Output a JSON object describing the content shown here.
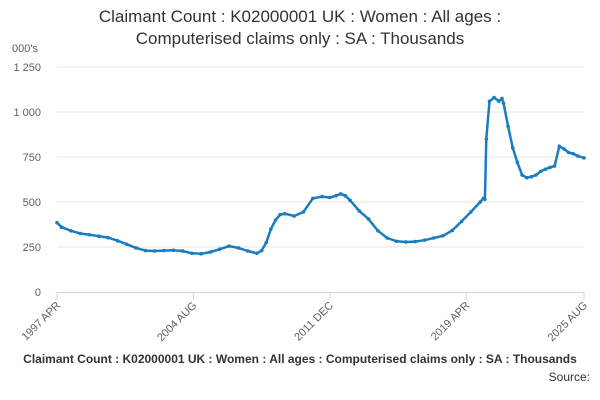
{
  "chart_data": {
    "type": "line",
    "title": "Claimant Count : K02000001 UK : Women : All ages : Computerised claims only : SA : Thousands",
    "title_lines": [
      "Claimant Count : K02000001 UK : Women : All ages :",
      "Computerised claims only : SA : Thousands"
    ],
    "ylabel": "000's",
    "xlabel": "",
    "footer_title": "Claimant Count : K02000001 UK : Women : All ages : Computerised claims only : SA : Thousands",
    "source_label": "Source:",
    "ylim": [
      0,
      1250
    ],
    "yticks": [
      0,
      250,
      500,
      750,
      1000,
      1250
    ],
    "ytick_labels": [
      "0",
      "250",
      "500",
      "750",
      "1 000",
      "1 250"
    ],
    "xlim": [
      1997.25,
      2025.58
    ],
    "xticks": [
      1997.25,
      2004.58,
      2011.92,
      2019.25,
      2025.58
    ],
    "xtick_labels": [
      "1997 APR",
      "2004 AUG",
      "2011 DEC",
      "2019 APR",
      "2025 AUG"
    ],
    "grid": true,
    "legend": "none",
    "color": "#1a7dc0",
    "series": [
      {
        "x": [
          1997.25,
          1997.5,
          1998.0,
          1998.5,
          1999.0,
          1999.5,
          2000.0,
          2000.5,
          2001.0,
          2001.5,
          2002.0,
          2002.5,
          2003.0,
          2003.5,
          2004.0,
          2004.5,
          2005.0,
          2005.5,
          2006.0,
          2006.5,
          2007.0,
          2007.5,
          2008.0,
          2008.25,
          2008.5,
          2008.75,
          2009.0,
          2009.25,
          2009.5,
          2010.0,
          2010.5,
          2011.0,
          2011.5,
          2011.92,
          2012.25,
          2012.5,
          2012.75,
          2013.0,
          2013.5,
          2014.0,
          2014.5,
          2015.0,
          2015.5,
          2016.0,
          2016.5,
          2017.0,
          2017.5,
          2018.0,
          2018.5,
          2019.0,
          2019.5,
          2020.0,
          2020.17,
          2020.25,
          2020.33,
          2020.5,
          2020.75,
          2021.0,
          2021.17,
          2021.25,
          2021.5,
          2021.75,
          2022.0,
          2022.25,
          2022.5,
          2022.75,
          2023.0,
          2023.25,
          2023.5,
          2023.75,
          2024.0,
          2024.25,
          2024.5,
          2024.75,
          2025.0,
          2025.25,
          2025.58
        ],
        "y": [
          385,
          360,
          340,
          325,
          318,
          310,
          302,
          285,
          265,
          245,
          230,
          228,
          230,
          232,
          228,
          215,
          212,
          222,
          238,
          255,
          245,
          228,
          215,
          230,
          275,
          350,
          400,
          430,
          435,
          422,
          445,
          520,
          530,
          525,
          535,
          545,
          535,
          510,
          450,
          405,
          340,
          300,
          282,
          278,
          280,
          288,
          300,
          312,
          342,
          392,
          445,
          500,
          520,
          515,
          850,
          1060,
          1080,
          1060,
          1075,
          1050,
          920,
          800,
          720,
          650,
          635,
          640,
          650,
          670,
          682,
          692,
          700,
          810,
          795,
          775,
          768,
          755,
          745
        ]
      }
    ]
  }
}
